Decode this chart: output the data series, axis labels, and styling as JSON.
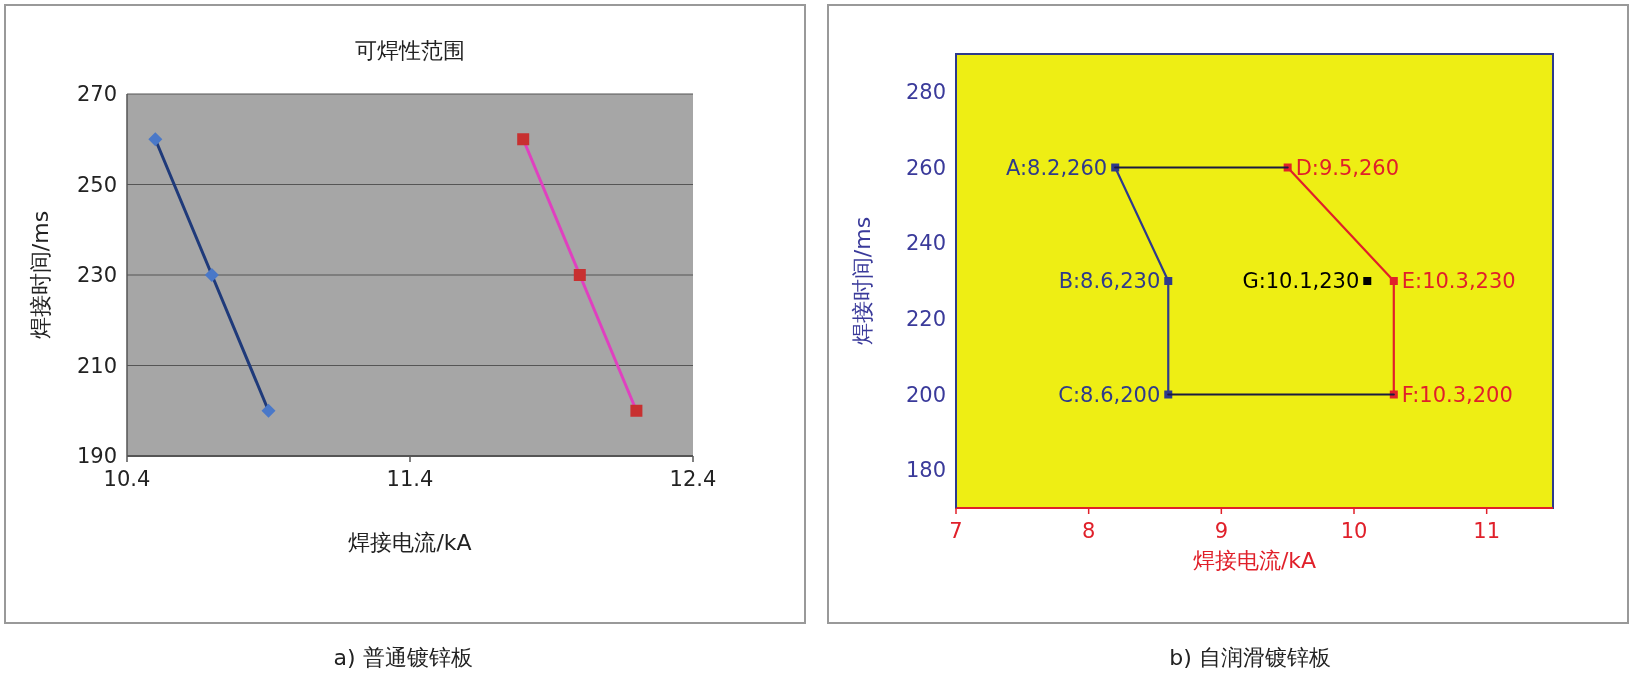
{
  "chart_data": [
    {
      "type": "line",
      "title": "可焊性范围",
      "xlabel": "焊接电流/kA",
      "ylabel": "焊接时间/ms",
      "xlim": [
        10.4,
        12.4
      ],
      "xticks": [
        10.4,
        11.4,
        12.4
      ],
      "ylim": [
        190,
        270
      ],
      "yticks": [
        190,
        210,
        230,
        250,
        270
      ],
      "grid": "y",
      "series": [
        {
          "color": "#1f3a7a",
          "colors": [
            "#4a78c8",
            "#4a78c8",
            "#4a78c8"
          ],
          "marker": "diamond",
          "x": [
            10.5,
            10.7,
            10.9
          ],
          "values": [
            260,
            230,
            200
          ]
        },
        {
          "color": "#e040c0",
          "colors": [
            "#c83030",
            "#c83030",
            "#c83030"
          ],
          "marker": "square",
          "x": [
            11.8,
            12.0,
            12.2
          ],
          "values": [
            260,
            230,
            200
          ]
        }
      ],
      "annotations": [
        "a) 普通镀锌板"
      ]
    },
    {
      "type": "line",
      "xlabel": "焊接电流/kA",
      "ylabel": "焊接时间/ms",
      "xlim": [
        7,
        11.5
      ],
      "xticks": [
        7,
        8,
        9,
        10,
        11
      ],
      "ylim": [
        170,
        290
      ],
      "yticks": [
        180,
        200,
        220,
        240,
        260,
        280
      ],
      "grid": false,
      "series": [
        {
          "color": "#2e3a8c",
          "marker": "square",
          "x": [
            8.2,
            8.6,
            8.6
          ],
          "values": [
            260,
            230,
            200
          ]
        },
        {
          "color": "#e0202a",
          "marker": "square",
          "x": [
            9.5,
            10.3,
            10.3
          ],
          "values": [
            260,
            230,
            200
          ]
        },
        {
          "color": "#1a1a40",
          "marker": "none",
          "x": [
            8.2,
            9.5
          ],
          "values": [
            260,
            260
          ]
        },
        {
          "color": "#1a1a40",
          "marker": "none",
          "x": [
            8.6,
            10.3
          ],
          "values": [
            200,
            200
          ]
        },
        {
          "type": "scatter",
          "color": "#000000",
          "marker": "square",
          "x": [
            10.1
          ],
          "values": [
            230
          ]
        }
      ],
      "annotations": [
        {
          "text": "A:8.2,260",
          "x": 8.2,
          "y": 260
        },
        {
          "text": "B:8.6,230",
          "x": 8.6,
          "y": 230
        },
        {
          "text": "C:8.6,200",
          "x": 8.6,
          "y": 200
        },
        {
          "text": "D:9.5,260",
          "x": 9.5,
          "y": 260
        },
        {
          "text": "E:10.3,230",
          "x": 10.3,
          "y": 230
        },
        {
          "text": "F:10.3,200",
          "x": 10.3,
          "y": 200
        },
        {
          "text": "G:10.1,230",
          "x": 10.1,
          "y": 230
        },
        "b) 自润滑镀锌板"
      ]
    }
  ]
}
